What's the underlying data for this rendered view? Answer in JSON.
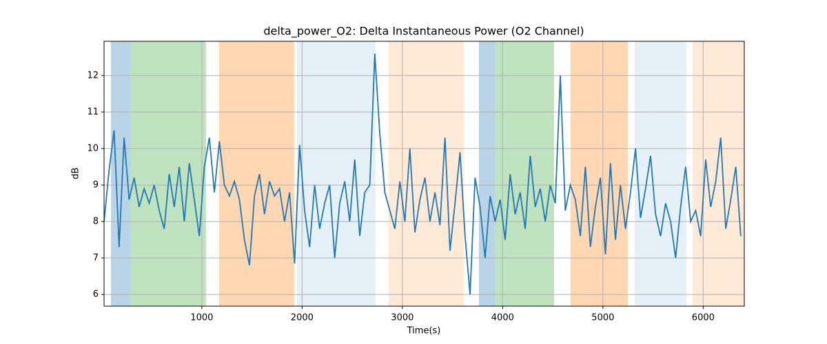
{
  "chart_data": {
    "type": "line",
    "title": "delta_power_O2: Delta Instantaneous Power (O2 Channel)",
    "xlabel": "Time(s)",
    "ylabel": "dB",
    "xlim": [
      25,
      6410
    ],
    "ylim": [
      5.68,
      12.94
    ],
    "xticks": [
      1000,
      2000,
      3000,
      4000,
      5000,
      6000
    ],
    "yticks": [
      6,
      7,
      8,
      9,
      10,
      11,
      12
    ],
    "grid": true,
    "spans": [
      {
        "start": 93,
        "end": 290,
        "color": "#1f77b450"
      },
      {
        "start": 290,
        "end": 1041,
        "color": "#2ca02c4d"
      },
      {
        "start": 1172,
        "end": 1921,
        "color": "#ff7f0e50"
      },
      {
        "start": 1948,
        "end": 2732,
        "color": "#1f77b41c"
      },
      {
        "start": 2862,
        "end": 3612,
        "color": "#ff7f0e2a"
      },
      {
        "start": 3763,
        "end": 3928,
        "color": "#1f77b450"
      },
      {
        "start": 3928,
        "end": 4512,
        "color": "#2ca02c4d"
      },
      {
        "start": 4677,
        "end": 5248,
        "color": "#ff7f0e50"
      },
      {
        "start": 5316,
        "end": 5832,
        "color": "#1f77b41c"
      },
      {
        "start": 5894,
        "end": 6410,
        "color": "#ff7f0e2a"
      }
    ],
    "x": [
      25,
      75,
      125,
      175,
      225,
      275,
      325,
      375,
      425,
      475,
      525,
      575,
      625,
      675,
      725,
      775,
      825,
      875,
      925,
      975,
      1025,
      1075,
      1125,
      1175,
      1225,
      1275,
      1325,
      1375,
      1425,
      1475,
      1525,
      1575,
      1625,
      1675,
      1725,
      1775,
      1825,
      1875,
      1925,
      1975,
      2025,
      2075,
      2125,
      2175,
      2225,
      2275,
      2325,
      2375,
      2425,
      2475,
      2525,
      2575,
      2625,
      2675,
      2725,
      2775,
      2825,
      2875,
      2925,
      2975,
      3025,
      3075,
      3125,
      3175,
      3225,
      3275,
      3325,
      3375,
      3425,
      3475,
      3525,
      3575,
      3625,
      3675,
      3725,
      3775,
      3825,
      3875,
      3925,
      3975,
      4025,
      4075,
      4125,
      4175,
      4225,
      4275,
      4325,
      4375,
      4425,
      4475,
      4525,
      4575,
      4625,
      4675,
      4725,
      4775,
      4825,
      4875,
      4925,
      4975,
      5025,
      5075,
      5125,
      5175,
      5225,
      5275,
      5325,
      5375,
      5425,
      5475,
      5525,
      5575,
      5625,
      5675,
      5725,
      5775,
      5825,
      5875,
      5925,
      5975,
      6025,
      6075,
      6125,
      6175,
      6225,
      6275,
      6325,
      6375
    ],
    "series": [
      {
        "name": "delta_power_O2",
        "color": "#1f77b4",
        "values": [
          8.0,
          9.4,
          10.5,
          7.3,
          10.3,
          8.6,
          9.2,
          8.4,
          8.9,
          8.5,
          9.0,
          8.3,
          7.8,
          9.3,
          8.4,
          9.5,
          8.0,
          9.6,
          8.6,
          7.6,
          9.5,
          10.3,
          8.8,
          10.2,
          9.0,
          8.7,
          9.1,
          8.6,
          7.5,
          6.8,
          8.7,
          9.3,
          8.2,
          9.1,
          8.7,
          8.9,
          8.0,
          8.8,
          6.85,
          10.1,
          8.3,
          7.3,
          9.0,
          7.8,
          8.5,
          9.0,
          7.0,
          8.5,
          9.1,
          8.0,
          9.7,
          7.6,
          8.8,
          9.0,
          12.6,
          10.4,
          8.8,
          8.3,
          7.8,
          9.1,
          8.0,
          10.0,
          7.7,
          8.6,
          9.2,
          8.0,
          8.8,
          7.9,
          10.3,
          7.2,
          8.5,
          9.9,
          7.6,
          6.0,
          9.2,
          8.4,
          7.0,
          8.7,
          8.0,
          8.6,
          7.5,
          9.3,
          8.2,
          8.8,
          7.8,
          9.8,
          8.4,
          8.9,
          8.0,
          9.0,
          8.5,
          12.0,
          8.3,
          9.0,
          8.6,
          7.6,
          9.5,
          7.3,
          8.4,
          9.2,
          7.1,
          9.6,
          7.5,
          9.0,
          7.8,
          8.8,
          10.0,
          8.1,
          8.9,
          9.8,
          8.2,
          7.6,
          8.5,
          8.0,
          7.0,
          8.4,
          9.5,
          8.0,
          8.3,
          7.6,
          9.7,
          8.4,
          9.1,
          10.3,
          7.8,
          8.6,
          9.5,
          7.6
        ]
      }
    ]
  }
}
